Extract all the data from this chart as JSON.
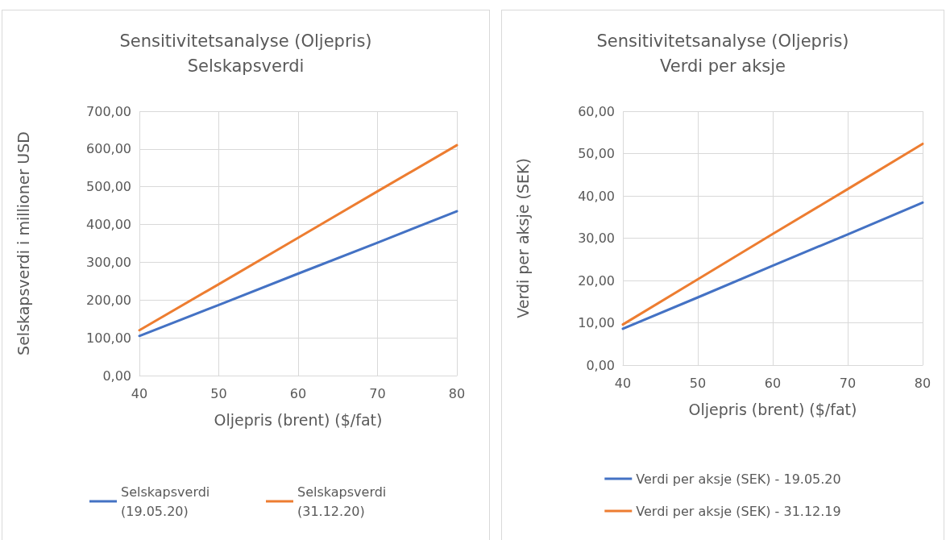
{
  "chart_data": [
    {
      "type": "line",
      "title": "Sensitivitetsanalyse (Oljepris)",
      "subtitle": "Selskapsverdi",
      "xlabel": "Oljepris (brent) ($/fat)",
      "ylabel": "Selskapsverdi i millioner USD",
      "x": [
        40,
        50,
        60,
        70,
        80
      ],
      "series": [
        {
          "name": "Selskapsverdi (19.05.20)",
          "color": "#4472c4",
          "values": [
            105,
            187,
            270,
            352,
            435
          ]
        },
        {
          "name": "Selskapsverdi (31.12.20)",
          "color": "#ed7d31",
          "values": [
            120,
            242,
            365,
            488,
            610
          ]
        }
      ],
      "xlim": [
        40,
        80
      ],
      "xticks": [
        40,
        50,
        60,
        70,
        80
      ],
      "ylim": [
        0,
        700
      ],
      "yticks": [
        {
          "value": 0,
          "label": "0,00"
        },
        {
          "value": 100,
          "label": "100,00"
        },
        {
          "value": 200,
          "label": "200,00"
        },
        {
          "value": 300,
          "label": "300,00"
        },
        {
          "value": 400,
          "label": "400,00"
        },
        {
          "value": 500,
          "label": "500,00"
        },
        {
          "value": 600,
          "label": "600,00"
        },
        {
          "value": 700,
          "label": "700,00"
        }
      ],
      "grid": true,
      "legend": "bottom",
      "marker": "none",
      "line_style": "solid"
    },
    {
      "type": "line",
      "title": "Sensitivitetsanalyse (Oljepris)",
      "subtitle": "Verdi per aksje",
      "xlabel": "Oljepris (brent) ($/fat)",
      "ylabel": "Verdi per aksje (SEK)",
      "x": [
        40,
        50,
        60,
        70,
        80
      ],
      "series": [
        {
          "name": "Verdi per aksje (SEK) - 19.05.20",
          "color": "#4472c4",
          "values": [
            8.6,
            16.0,
            23.5,
            30.9,
            38.4
          ]
        },
        {
          "name": "Verdi per aksje (SEK) - 31.12.19",
          "color": "#ed7d31",
          "values": [
            9.6,
            20.3,
            31.0,
            41.6,
            52.3
          ]
        }
      ],
      "xlim": [
        40,
        80
      ],
      "xticks": [
        40,
        50,
        60,
        70,
        80
      ],
      "ylim": [
        0,
        60
      ],
      "yticks": [
        {
          "value": 0,
          "label": "0,00"
        },
        {
          "value": 10,
          "label": "10,00"
        },
        {
          "value": 20,
          "label": "20,00"
        },
        {
          "value": 30,
          "label": "30,00"
        },
        {
          "value": 40,
          "label": "40,00"
        },
        {
          "value": 50,
          "label": "50,00"
        },
        {
          "value": 60,
          "label": "60,00"
        }
      ],
      "grid": true,
      "legend": "bottom",
      "marker": "none",
      "line_style": "solid"
    }
  ]
}
